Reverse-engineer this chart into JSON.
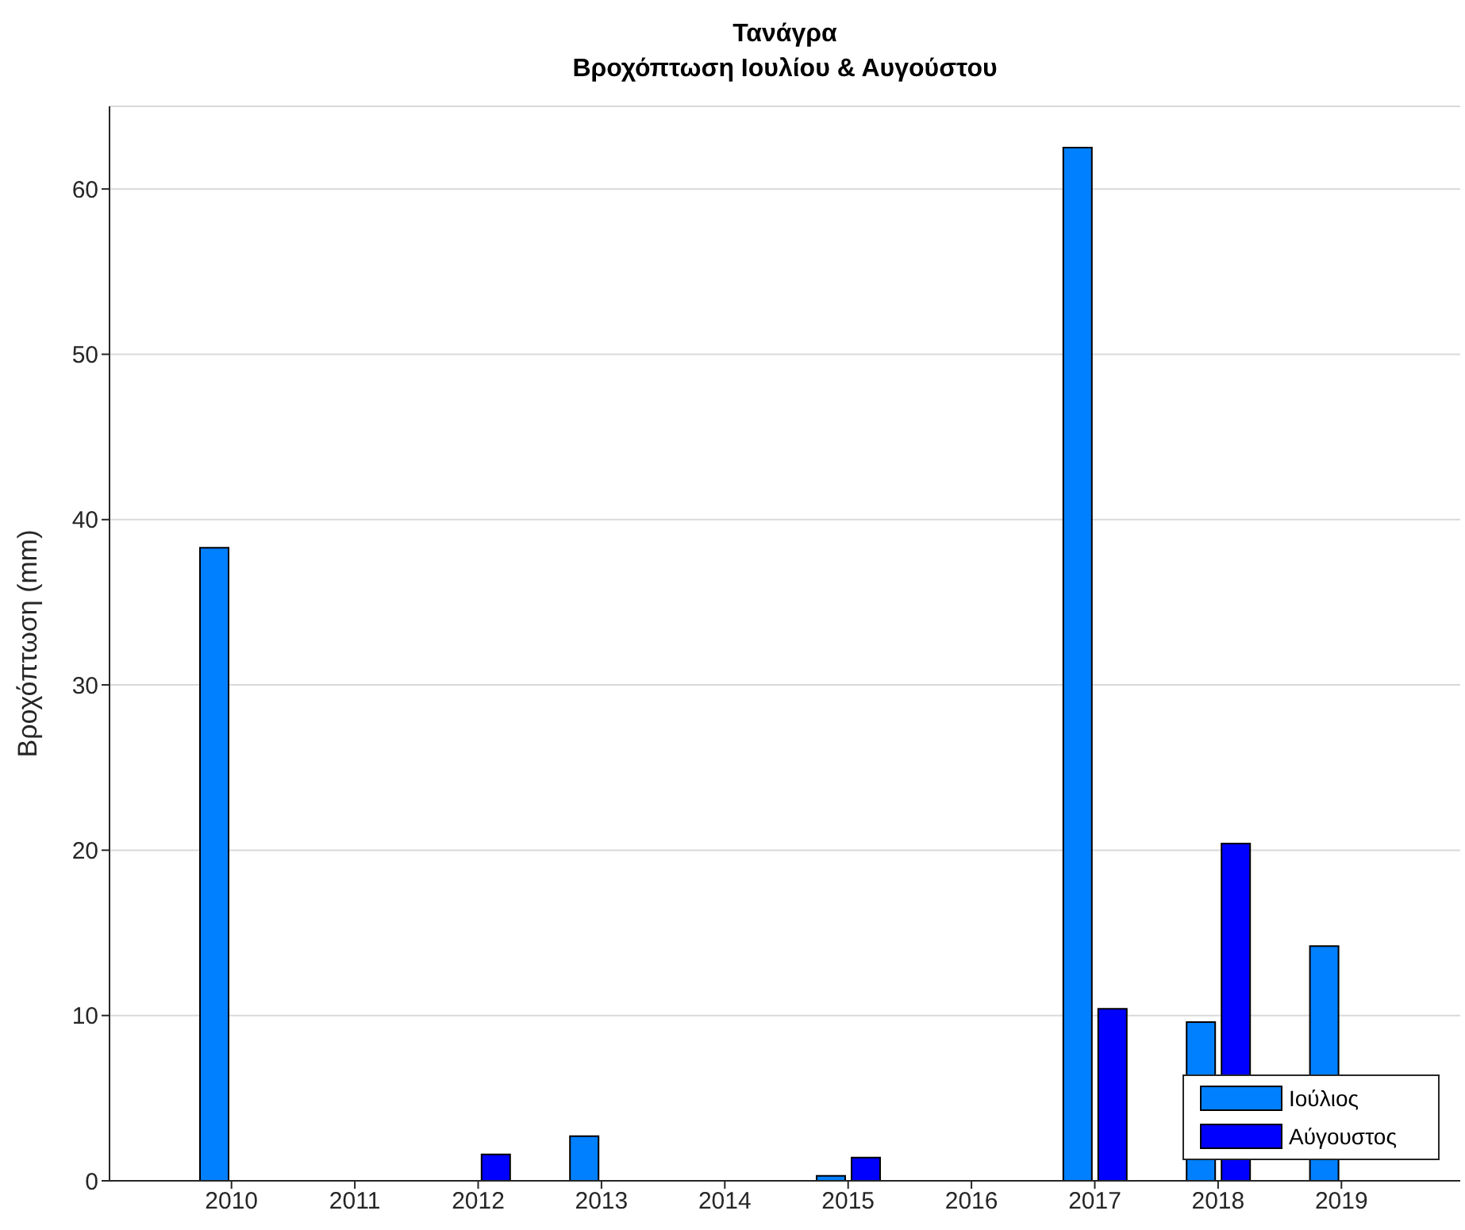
{
  "chart_data": {
    "type": "bar",
    "title": "Τανάγρα",
    "subtitle": "Βροχόπτωση Ιουλίου & Αυγούστου",
    "ylabel": "Βροχόπτωση (mm)",
    "categories": [
      "2010",
      "2011",
      "2012",
      "2013",
      "2014",
      "2015",
      "2016",
      "2017",
      "2018",
      "2019"
    ],
    "series": [
      {
        "name": "Ιούλιος",
        "color": "#0080ff",
        "values": [
          38.3,
          0,
          0,
          2.7,
          0,
          0.3,
          0,
          62.5,
          9.6,
          14.2
        ]
      },
      {
        "name": "Αύγουστος",
        "color": "#0000ff",
        "values": [
          0,
          0,
          1.6,
          0,
          0,
          1.4,
          0,
          10.4,
          20.4,
          0
        ]
      }
    ],
    "ylim": [
      0,
      65
    ],
    "yticks": [
      0,
      10,
      20,
      30,
      40,
      50,
      60
    ],
    "grid": "y",
    "legend": "bottom right"
  }
}
